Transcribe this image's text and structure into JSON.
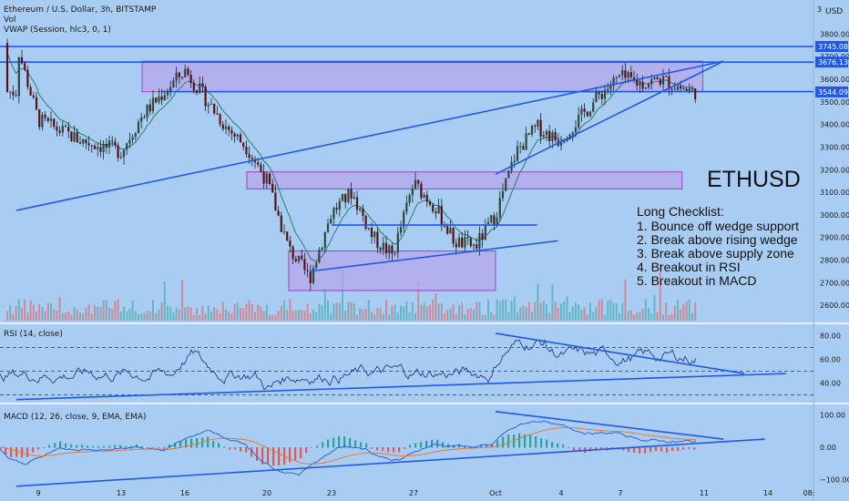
{
  "header": {
    "symbol_line": "Ethereum / U.S. Dollar, 3h, BITSTAMP",
    "vol_label": "Vol",
    "vwap_label": "VWAP (Session, hlc3, 0, 1)",
    "currency_label": "USD",
    "currency_prefix": "3"
  },
  "colors": {
    "background": "#a9cdf2",
    "up_candle": "#26a69a",
    "down_candle": "#ef5350",
    "trendline": "#2157f0",
    "zone_fill": "#b7a6ec",
    "zone_border": "#a040c0",
    "indicator_line": "#2a3a8a"
  },
  "annotation": {
    "ticker": "ETHUSD",
    "checklist_title": "Long Checklist:",
    "items": [
      "1. Bounce off wedge support",
      "2. Break above rising wedge",
      "3. Break above supply zone",
      "4. Breakout in RSI",
      "5. Breakout in MACD"
    ]
  },
  "chart_data": [
    {
      "type": "candlestick",
      "title": "Ethereum / U.S. Dollar, 3h, BITSTAMP",
      "y_ticks": [
        "3800.00",
        "3700.00",
        "3600.00",
        "3500.00",
        "3400.00",
        "3300.00",
        "3200.00",
        "3100.00",
        "3000.00",
        "2900.00",
        "2800.00",
        "2700.00",
        "2600.00"
      ],
      "ylim": [
        2560,
        3830
      ],
      "x_ticks": [
        "9",
        "13",
        "16",
        "20",
        "23",
        "27",
        "Oct",
        "4",
        "7",
        "11",
        "14",
        "08:"
      ],
      "price_labels": [
        {
          "text": "3745.08",
          "value": 3745.08,
          "style": "line"
        },
        {
          "text": "3676.13",
          "value": 3676.13,
          "style": "line"
        },
        {
          "text": "3545.33",
          "value": 3545.33,
          "style": "current"
        },
        {
          "text": "3544.09",
          "value": 3544.09,
          "style": "line"
        }
      ],
      "horizontal_levels": [
        3745.08,
        3676.13,
        3545.33
      ],
      "zones": [
        {
          "x_range": [
            "14",
            "Oct 11"
          ],
          "y_range": [
            3545,
            3680
          ]
        },
        {
          "x_range": [
            "19",
            "Oct 10"
          ],
          "y_range": [
            3115,
            3190
          ]
        },
        {
          "x_range": [
            "21",
            "Oct 1"
          ],
          "y_range": [
            2665,
            2840
          ]
        }
      ],
      "trendlines": [
        {
          "from": [
            "8",
            3020
          ],
          "to": [
            "Oct 12",
            3680
          ]
        },
        {
          "from": [
            "Oct 1",
            3180
          ],
          "to": [
            "Oct 12",
            3680
          ]
        },
        {
          "from": [
            "22",
            2750
          ],
          "to": [
            "Oct 4",
            2885
          ]
        },
        {
          "from": [
            "23",
            2955
          ],
          "to": [
            "Oct 3",
            2955
          ]
        }
      ],
      "series_price_path": [
        [
          "8",
          3760
        ],
        [
          "9",
          3420
        ],
        [
          "11",
          3330
        ],
        [
          "13",
          3280
        ],
        [
          "14",
          3440
        ],
        [
          "16",
          3640
        ],
        [
          "18",
          3390
        ],
        [
          "19",
          3300
        ],
        [
          "20",
          3150
        ],
        [
          "21",
          2850
        ],
        [
          "22",
          2720
        ],
        [
          "23",
          3010
        ],
        [
          "24",
          3100
        ],
        [
          "25",
          2900
        ],
        [
          "26",
          2820
        ],
        [
          "27",
          3140
        ],
        [
          "28",
          3040
        ],
        [
          "29",
          2880
        ],
        [
          "30",
          2860
        ],
        [
          "Oct 1",
          3000
        ],
        [
          "Oct 2",
          3280
        ],
        [
          "Oct 3",
          3390
        ],
        [
          "Oct 4",
          3330
        ],
        [
          "Oct 5",
          3420
        ],
        [
          "Oct 6",
          3530
        ],
        [
          "Oct 7",
          3610
        ],
        [
          "Oct 8",
          3580
        ],
        [
          "Oct 9",
          3600
        ],
        [
          "Oct 10",
          3560
        ],
        [
          "Oct 10.5",
          3545
        ]
      ]
    },
    {
      "type": "line",
      "title": "RSI (14, close)",
      "y_ticks": [
        "80.00",
        "60.00",
        "40.00"
      ],
      "ylim": [
        25,
        85
      ],
      "levels": [
        70,
        50,
        30
      ],
      "trendlines": [
        {
          "from": [
            "8",
            26
          ],
          "to": [
            "Oct 15",
            48
          ]
        },
        {
          "from": [
            "Oct 1",
            82
          ],
          "to": [
            "Oct 13",
            48
          ]
        }
      ]
    },
    {
      "type": "line",
      "title": "MACD (12, 26, close, 9, EMA, EMA)",
      "y_ticks": [
        "100.00",
        "0.00",
        "−100.00"
      ],
      "ylim": [
        -115,
        115
      ],
      "series": [
        {
          "name": "MACD",
          "color": "#2157f0"
        },
        {
          "name": "Signal",
          "color": "#f07020"
        }
      ],
      "trendlines": [
        {
          "from": [
            "8",
            -120
          ],
          "to": [
            "Oct 14",
            25
          ]
        },
        {
          "from": [
            "Oct 1",
            110
          ],
          "to": [
            "Oct 12",
            25
          ]
        }
      ]
    }
  ]
}
